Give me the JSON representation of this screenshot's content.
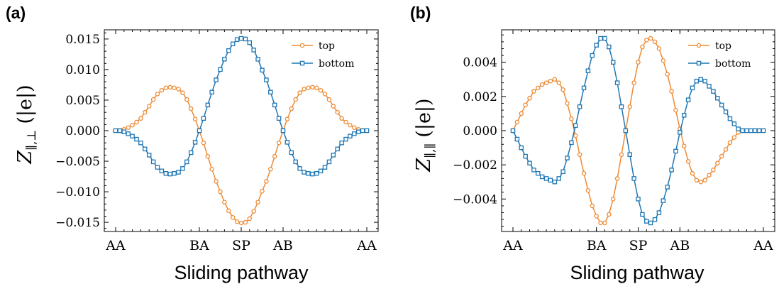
{
  "chart_data": [
    {
      "type": "line",
      "panel_label": "(a)",
      "xlabel": "Sliding pathway",
      "ylabel": "Z",
      "ylabel_sub": "∥,⊥",
      "ylabel_unit": "(|e|)",
      "categories": [
        "AA",
        "BA",
        "SP",
        "AB",
        "AA"
      ],
      "category_positions": [
        0,
        20,
        30,
        40,
        60
      ],
      "x_range": [
        0,
        60
      ],
      "ylim": [
        -0.0165,
        0.0165
      ],
      "yticks": [
        -0.015,
        -0.01,
        -0.005,
        0.0,
        0.005,
        0.01,
        0.015
      ],
      "ytick_labels": [
        "−0.015",
        "−0.010",
        "−0.005",
        "0.000",
        "0.005",
        "0.010",
        "0.015"
      ],
      "legend_position": "top-right",
      "series": [
        {
          "name": "top",
          "marker": "circle",
          "color": "#ee8a33",
          "x": [
            0,
            1,
            2,
            3,
            4,
            5,
            6,
            7,
            8,
            9,
            10,
            11,
            12,
            13,
            14,
            15,
            16,
            17,
            18,
            19,
            20,
            21,
            22,
            23,
            24,
            25,
            26,
            27,
            28,
            29,
            30,
            31,
            32,
            33,
            34,
            35,
            36,
            37,
            38,
            39,
            40,
            41,
            42,
            43,
            44,
            45,
            46,
            47,
            48,
            49,
            50,
            51,
            52,
            53,
            54,
            55,
            56,
            57,
            58,
            59,
            60
          ],
          "y": [
            0.0,
            0.0,
            0.0002,
            0.0005,
            0.0009,
            0.0014,
            0.002,
            0.003,
            0.004,
            0.0051,
            0.006,
            0.0066,
            0.007,
            0.0071,
            0.007,
            0.0068,
            0.0062,
            0.0051,
            0.0036,
            0.0019,
            0.0,
            -0.002,
            -0.0042,
            -0.0063,
            -0.0083,
            -0.01,
            -0.0117,
            -0.0131,
            -0.0142,
            -0.0149,
            -0.0151,
            -0.015,
            -0.0144,
            -0.0132,
            -0.0117,
            -0.0099,
            -0.0083,
            -0.0063,
            -0.0042,
            -0.002,
            0.0,
            0.0019,
            0.0036,
            0.0051,
            0.0062,
            0.0068,
            0.007,
            0.0071,
            0.007,
            0.0066,
            0.006,
            0.0051,
            0.004,
            0.003,
            0.002,
            0.0014,
            0.0009,
            0.0005,
            0.0002,
            0.0,
            0.0
          ]
        },
        {
          "name": "bottom",
          "marker": "square",
          "color": "#1f77b4",
          "x": [
            0,
            1,
            2,
            3,
            4,
            5,
            6,
            7,
            8,
            9,
            10,
            11,
            12,
            13,
            14,
            15,
            16,
            17,
            18,
            19,
            20,
            21,
            22,
            23,
            24,
            25,
            26,
            27,
            28,
            29,
            30,
            31,
            32,
            33,
            34,
            35,
            36,
            37,
            38,
            39,
            40,
            41,
            42,
            43,
            44,
            45,
            46,
            47,
            48,
            49,
            50,
            51,
            52,
            53,
            54,
            55,
            56,
            57,
            58,
            59,
            60
          ],
          "y": [
            0.0,
            0.0,
            -0.0002,
            -0.0005,
            -0.0009,
            -0.0014,
            -0.002,
            -0.003,
            -0.004,
            -0.0051,
            -0.006,
            -0.0066,
            -0.007,
            -0.0071,
            -0.007,
            -0.0068,
            -0.0062,
            -0.0051,
            -0.0036,
            -0.0019,
            0.0,
            0.002,
            0.0042,
            0.0063,
            0.0083,
            0.01,
            0.0117,
            0.0131,
            0.0142,
            0.0149,
            0.0151,
            0.015,
            0.0144,
            0.0132,
            0.0117,
            0.0099,
            0.0083,
            0.0063,
            0.0042,
            0.002,
            0.0,
            -0.0019,
            -0.0036,
            -0.0051,
            -0.0062,
            -0.0068,
            -0.007,
            -0.0071,
            -0.007,
            -0.0066,
            -0.006,
            -0.0051,
            -0.004,
            -0.003,
            -0.002,
            -0.0014,
            -0.0009,
            -0.0005,
            -0.0002,
            0.0,
            0.0
          ]
        }
      ]
    },
    {
      "type": "line",
      "panel_label": "(b)",
      "xlabel": "Sliding pathway",
      "ylabel": "Z",
      "ylabel_sub": "∥,∥",
      "ylabel_unit": "(|e|)",
      "categories": [
        "AA",
        "BA",
        "SP",
        "AB",
        "AA"
      ],
      "category_positions": [
        0,
        20,
        30,
        40,
        60
      ],
      "x_range": [
        0,
        60
      ],
      "ylim": [
        -0.0059,
        0.0059
      ],
      "yticks": [
        -0.004,
        -0.002,
        0.0,
        0.002,
        0.004
      ],
      "ytick_labels": [
        "−0.004",
        "−0.002",
        "0.000",
        "0.002",
        "0.004"
      ],
      "legend_position": "top-right",
      "series": [
        {
          "name": "top",
          "marker": "circle",
          "color": "#ee8a33",
          "x": [
            0,
            1,
            2,
            3,
            4,
            5,
            6,
            7,
            8,
            9,
            10,
            11,
            12,
            13,
            14,
            15,
            16,
            17,
            18,
            19,
            20,
            21,
            22,
            23,
            24,
            25,
            26,
            27,
            28,
            29,
            30,
            31,
            32,
            33,
            34,
            35,
            36,
            37,
            38,
            39,
            40,
            41,
            42,
            43,
            44,
            45,
            46,
            47,
            48,
            49,
            50,
            51,
            52,
            53,
            54,
            55,
            56,
            57,
            58,
            59,
            60
          ],
          "y": [
            0.0,
            0.0005,
            0.001,
            0.0015,
            0.0019,
            0.0023,
            0.0025,
            0.0027,
            0.0028,
            0.0029,
            0.003,
            0.0028,
            0.0024,
            0.0016,
            0.0007,
            -0.0003,
            -0.0014,
            -0.0025,
            -0.0035,
            -0.0044,
            -0.005,
            -0.0054,
            -0.0054,
            -0.0049,
            -0.004,
            -0.0028,
            -0.0014,
            0.0,
            0.0014,
            0.0028,
            0.004,
            0.0049,
            0.0053,
            0.0054,
            0.0052,
            0.0048,
            0.0041,
            0.0033,
            0.0023,
            0.0012,
            0.0001,
            -0.0009,
            -0.0018,
            -0.0025,
            -0.0029,
            -0.003,
            -0.0029,
            -0.0026,
            -0.0023,
            -0.0019,
            -0.0015,
            -0.0011,
            -0.0007,
            -0.0004,
            -0.0001,
            0.0,
            0.0,
            0.0,
            0.0,
            0.0,
            0.0
          ]
        },
        {
          "name": "bottom",
          "marker": "square",
          "color": "#1f77b4",
          "x": [
            0,
            1,
            2,
            3,
            4,
            5,
            6,
            7,
            8,
            9,
            10,
            11,
            12,
            13,
            14,
            15,
            16,
            17,
            18,
            19,
            20,
            21,
            22,
            23,
            24,
            25,
            26,
            27,
            28,
            29,
            30,
            31,
            32,
            33,
            34,
            35,
            36,
            37,
            38,
            39,
            40,
            41,
            42,
            43,
            44,
            45,
            46,
            47,
            48,
            49,
            50,
            51,
            52,
            53,
            54,
            55,
            56,
            57,
            58,
            59,
            60
          ],
          "y": [
            0.0,
            -0.0005,
            -0.001,
            -0.0015,
            -0.0019,
            -0.0023,
            -0.0025,
            -0.0027,
            -0.0028,
            -0.0029,
            -0.003,
            -0.0028,
            -0.0024,
            -0.0016,
            -0.0007,
            0.0003,
            0.0014,
            0.0025,
            0.0035,
            0.0044,
            0.005,
            0.0054,
            0.0054,
            0.0049,
            0.004,
            0.0028,
            0.0014,
            0.0,
            -0.0014,
            -0.0028,
            -0.004,
            -0.0049,
            -0.0053,
            -0.0054,
            -0.0052,
            -0.0048,
            -0.0041,
            -0.0033,
            -0.0023,
            -0.0012,
            -0.0001,
            0.0009,
            0.0018,
            0.0025,
            0.0029,
            0.003,
            0.0029,
            0.0026,
            0.0023,
            0.0019,
            0.0015,
            0.0011,
            0.0007,
            0.0004,
            0.0001,
            0.0,
            0.0,
            0.0,
            0.0,
            0.0,
            0.0
          ]
        }
      ]
    }
  ]
}
